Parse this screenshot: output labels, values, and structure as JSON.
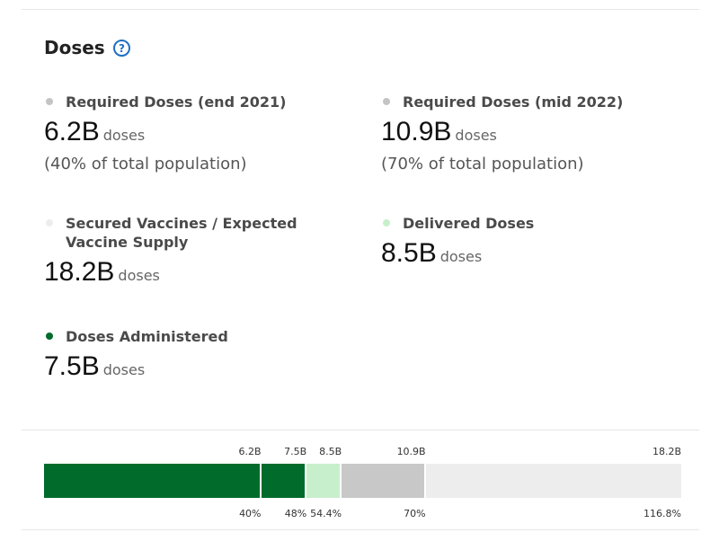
{
  "section": {
    "title": "Doses",
    "help_icon": "help-circle-icon",
    "help_glyph": "?"
  },
  "metrics": [
    {
      "label": "Required Doses (end 2021)",
      "value": "6.2B",
      "unit": "doses",
      "note": "(40% of total population)",
      "color": "#c4c4c4"
    },
    {
      "label": "Required Doses (mid 2022)",
      "value": "10.9B",
      "unit": "doses",
      "note": "(70% of total population)",
      "color": "#c4c4c4"
    },
    {
      "label": "Secured Vaccines / Expected Vaccine Supply",
      "value": "18.2B",
      "unit": "doses",
      "color": "#ededed"
    },
    {
      "label": "Delivered Doses",
      "value": "8.5B",
      "unit": "doses",
      "color": "#c8efcc"
    },
    {
      "label": "Doses Administered",
      "value": "7.5B",
      "unit": "doses",
      "color": "#006b2b"
    }
  ],
  "chart_data": {
    "type": "bar",
    "orientation": "horizontal-stacked",
    "max": 18.2,
    "segments": [
      {
        "value": 6.2,
        "top_label": "6.2B",
        "bottom_label": "40%",
        "color": "#006b2b"
      },
      {
        "value": 7.5,
        "top_label": "7.5B",
        "bottom_label": "48%",
        "color": "#006b2b"
      },
      {
        "value": 8.5,
        "top_label": "8.5B",
        "bottom_label": "54.4%",
        "color": "#c8efcc"
      },
      {
        "value": 10.9,
        "top_label": "10.9B",
        "bottom_label": "70%",
        "color": "#c8c8c8"
      },
      {
        "value": 18.2,
        "top_label": "18.2B",
        "bottom_label": "116.8%",
        "color": "#ededed"
      }
    ]
  }
}
